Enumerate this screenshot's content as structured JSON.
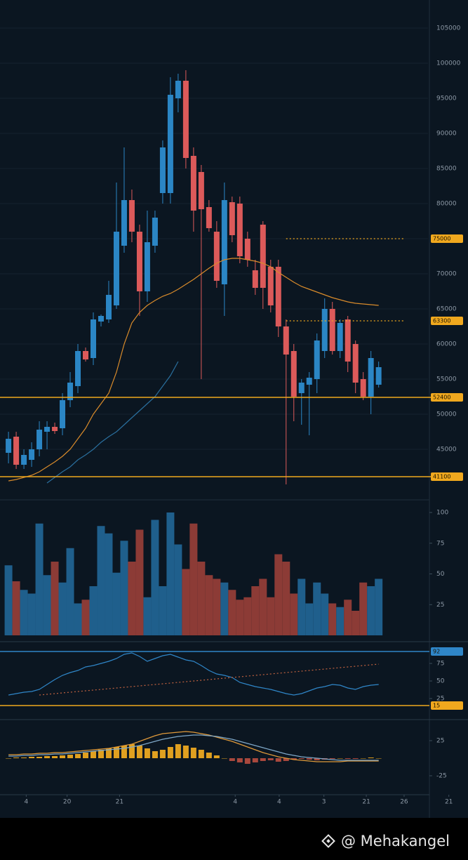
{
  "watermark": "@ Mehakangel",
  "chart_data": [
    {
      "type": "candlestick",
      "up_color": "#2b86c5",
      "down_color": "#dc5a5a",
      "grid": true,
      "xlim": [
        -1.1,
        54.4
      ],
      "xticks": [
        {
          "value": 2.3,
          "label": "4"
        },
        {
          "value": 7.6,
          "label": "20"
        },
        {
          "value": 14.4,
          "label": "21"
        },
        {
          "value": 29.4,
          "label": "4"
        },
        {
          "value": 35.1,
          "label": "4"
        },
        {
          "value": 40.9,
          "label": "3"
        },
        {
          "value": 46.4,
          "label": "21"
        },
        {
          "value": 51.3,
          "label": "26"
        },
        {
          "value": 57.1,
          "label": "21"
        }
      ],
      "ylim": [
        40000,
        109000
      ],
      "yticks": [
        45000,
        50000,
        55000,
        60000,
        65000,
        70000,
        75000,
        80000,
        85000,
        90000,
        95000,
        100000,
        105000
      ],
      "open": [
        44500,
        46800,
        42800,
        43500,
        45000,
        47500,
        48200,
        48000,
        52000,
        54000,
        59000,
        58000,
        63200,
        63500,
        65500,
        74000,
        80500,
        76000,
        67500,
        74000,
        81500,
        81500,
        95000,
        97500,
        86800,
        84500,
        79500,
        76000,
        68500,
        80200,
        80000,
        75000,
        70500,
        77000,
        71000,
        71000,
        62500,
        59000,
        53000,
        54200,
        55000,
        59000,
        65000,
        59000,
        63500,
        60000,
        55000,
        52500,
        54200
      ],
      "high": [
        47500,
        47500,
        45000,
        46000,
        49000,
        49000,
        48800,
        53000,
        56000,
        60000,
        59500,
        64500,
        64200,
        69000,
        83000,
        88000,
        82000,
        77000,
        79000,
        79000,
        89000,
        98000,
        98500,
        99000,
        88000,
        85500,
        80500,
        77500,
        83000,
        81000,
        81000,
        76000,
        72000,
        77500,
        72000,
        72000,
        63500,
        60000,
        55000,
        56000,
        61500,
        66500,
        66000,
        63500,
        64000,
        60500,
        56000,
        59000,
        57500
      ],
      "low": [
        43000,
        42200,
        42200,
        42500,
        44000,
        45000,
        47200,
        47000,
        51000,
        53000,
        57500,
        57000,
        62500,
        63000,
        65000,
        73000,
        74500,
        64000,
        66000,
        73000,
        80000,
        80000,
        93000,
        85000,
        76000,
        55000,
        76000,
        68000,
        64000,
        74500,
        71500,
        71000,
        67000,
        65000,
        64500,
        61000,
        40000,
        49000,
        48500,
        47000,
        53000,
        58000,
        58500,
        58000,
        56000,
        53000,
        52000,
        50000,
        53800
      ],
      "close": [
        46500,
        42800,
        44200,
        45000,
        47800,
        48200,
        47600,
        52000,
        54500,
        59000,
        57800,
        63500,
        64000,
        67000,
        76000,
        80500,
        76000,
        67500,
        74500,
        78000,
        88000,
        95500,
        97500,
        86500,
        79000,
        79200,
        76500,
        69000,
        80500,
        75500,
        72500,
        72000,
        68000,
        68000,
        65500,
        62500,
        58500,
        52500,
        54500,
        55200,
        60500,
        65000,
        59000,
        63000,
        57500,
        54500,
        52500,
        58000,
        56700
      ],
      "lines": [
        {
          "color": "#d98b2b",
          "values": [
            40500,
            40700,
            41000,
            41300,
            41800,
            42500,
            43200,
            44000,
            45000,
            46500,
            48000,
            50000,
            51500,
            53000,
            56000,
            60000,
            63000,
            64500,
            65500,
            66200,
            66800,
            67200,
            67800,
            68500,
            69200,
            70000,
            70800,
            71500,
            72000,
            72200,
            72200,
            72000,
            71800,
            71500,
            71000,
            70200,
            69500,
            68800,
            68200,
            67800,
            67400,
            67000,
            66600,
            66300,
            66000,
            65800,
            65700,
            65600,
            65500
          ]
        },
        {
          "color": "#2a6f9e",
          "values": [
            null,
            null,
            null,
            null,
            null,
            40200,
            41000,
            41800,
            42500,
            43500,
            44200,
            45000,
            46000,
            46800,
            47500,
            48500,
            49500,
            50500,
            51500,
            52500,
            54000,
            55500,
            57500,
            null,
            null,
            null,
            null,
            null,
            null,
            null,
            null,
            null,
            null,
            null,
            null,
            null,
            null,
            null,
            null,
            null,
            null,
            null,
            null,
            null,
            null,
            null,
            null,
            null,
            null
          ]
        }
      ],
      "levels": [
        {
          "value": 52400,
          "color": "#f0a81e",
          "dashed": false
        },
        {
          "value": 41100,
          "color": "#f0a81e",
          "dashed": false
        },
        {
          "value": 75000,
          "color": "#f0a81e",
          "dashed": true
        },
        {
          "value": 63300,
          "color": "#f0a81e",
          "dashed": true
        }
      ]
    },
    {
      "type": "bar",
      "up_color": "#1f5f8c",
      "down_color": "#8c3b36",
      "ylim": [
        0,
        100
      ],
      "yticks": [
        25,
        50,
        75,
        100
      ],
      "values": [
        57,
        44,
        37,
        34,
        91,
        49,
        60,
        43,
        71,
        26,
        29,
        40,
        89,
        83,
        51,
        77,
        60,
        86,
        31,
        94,
        40,
        100,
        74,
        54,
        91,
        60,
        49,
        46,
        43,
        37,
        29,
        31,
        40,
        46,
        31,
        66,
        60,
        34,
        46,
        26,
        43,
        34,
        26,
        23,
        29,
        20,
        43,
        40,
        46
      ]
    },
    {
      "type": "line",
      "ylim": [
        0,
        100
      ],
      "yticks": [
        25,
        50,
        75
      ],
      "series": [
        {
          "color": "#2f86c8",
          "values": [
            30,
            32,
            34,
            35,
            38,
            45,
            52,
            58,
            62,
            65,
            70,
            72,
            75,
            78,
            82,
            88,
            90,
            85,
            78,
            82,
            86,
            88,
            84,
            80,
            78,
            72,
            65,
            60,
            58,
            55,
            48,
            45,
            42,
            40,
            38,
            35,
            32,
            30,
            32,
            36,
            40,
            42,
            45,
            44,
            40,
            38,
            42,
            44,
            45
          ]
        },
        {
          "color": "#c0613f",
          "dashed": true,
          "values": [
            null,
            null,
            null,
            null,
            30,
            31,
            32,
            33,
            34,
            35,
            36,
            37,
            38,
            39,
            40,
            41,
            42,
            43,
            44,
            45,
            46,
            47,
            48,
            49,
            50,
            51,
            52,
            53,
            54,
            55,
            56,
            57,
            58,
            59,
            60,
            61,
            62,
            63,
            64,
            65,
            66,
            67,
            68,
            69,
            70,
            71,
            72,
            73,
            74
          ]
        }
      ],
      "hlines": [
        {
          "value": 92,
          "color": "#2f86c8"
        },
        {
          "value": 15,
          "color": "#f0a81e"
        }
      ]
    },
    {
      "type": "macd",
      "ylim": [
        -50,
        50
      ],
      "yticks": [
        -25,
        25
      ],
      "pos_color": "#e0a020",
      "neg_color": "#a9483d",
      "histogram": [
        0,
        1,
        1,
        2,
        2,
        3,
        3,
        4,
        5,
        6,
        8,
        10,
        12,
        14,
        16,
        18,
        20,
        18,
        14,
        10,
        12,
        16,
        20,
        18,
        15,
        12,
        8,
        4,
        0,
        -4,
        -6,
        -8,
        -6,
        -4,
        -3,
        -5,
        -4,
        -2,
        -1,
        -2,
        -3,
        -2,
        -1,
        0,
        -1,
        -1,
        0,
        1,
        0
      ],
      "series": [
        {
          "color": "#e09a3a",
          "values": [
            5,
            5,
            6,
            6,
            7,
            7,
            8,
            8,
            9,
            10,
            11,
            12,
            13,
            14,
            16,
            18,
            20,
            24,
            28,
            32,
            35,
            36,
            37,
            38,
            37,
            35,
            33,
            30,
            27,
            24,
            20,
            16,
            12,
            8,
            5,
            2,
            0,
            -2,
            -3,
            -4,
            -5,
            -5,
            -5,
            -5,
            -4,
            -4,
            -4,
            -4,
            -4
          ]
        },
        {
          "color": "#7fa8c8",
          "values": [
            3,
            3,
            4,
            4,
            5,
            5,
            6,
            6,
            7,
            8,
            9,
            10,
            11,
            12,
            13,
            14,
            16,
            18,
            21,
            24,
            27,
            29,
            31,
            32,
            33,
            33,
            32,
            31,
            29,
            27,
            24,
            21,
            18,
            15,
            12,
            9,
            6,
            4,
            2,
            1,
            0,
            -1,
            -2,
            -3,
            -3,
            -3,
            -3,
            -3,
            -3
          ]
        }
      ]
    }
  ]
}
